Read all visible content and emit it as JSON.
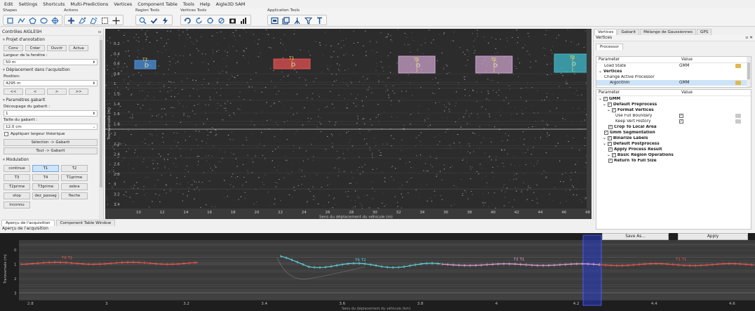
{
  "menu": [
    "Edit",
    "Settings",
    "Shortcuts",
    "Multi-Predictions",
    "Vertices",
    "Component Table",
    "Tools",
    "Help",
    "Aigle3D SAM"
  ],
  "toolbar": {
    "groups": [
      {
        "label": "Shapes",
        "icons": [
          "square-icon",
          "polyline-icon",
          "polygon-icon",
          "ellipse-icon",
          "circle-cross-icon"
        ]
      },
      {
        "label": "Actions",
        "icons": [
          "add-point-icon",
          "edit-shape-icon",
          "magic-shape-icon",
          "select-rect-icon",
          "crosshair-icon"
        ]
      },
      {
        "label": "Region Tools",
        "icons": [
          "zoom-icon",
          "check-icon",
          "bolt-icon"
        ]
      },
      {
        "label": "Vertices Tools",
        "icons": [
          "undo-icon",
          "redo-rotate-icon",
          "vertices-icon",
          "vertex-edit-icon",
          "camera-icon",
          "histogram-icon"
        ]
      },
      {
        "label": "Application Tools",
        "icons": [
          "app-screenshot-icon",
          "app-layers-icon",
          "app-road-icon",
          "app-filter-icon",
          "app-ruler-icon"
        ]
      }
    ]
  },
  "left": {
    "title": "Contrôles AIGLESH",
    "project_section": "Projet d'annotation",
    "project_buttons": [
      "Conv",
      "Créer",
      "Ouvrir",
      "Actua"
    ],
    "window_width_label": "Largeur de la fenêtre :",
    "window_width_value": "50 m",
    "displacement_section": "Déplacement dans l'acquisition",
    "position_label": "Position:",
    "position_value": "4295 m",
    "nav_buttons": [
      "<<",
      "<",
      ">",
      ">>"
    ],
    "gabarit_section": "Paramètres gabarit",
    "cut_label": "Découpage du gabarit :",
    "cut_value": "1",
    "size_label": "Taille du gabarit :",
    "size_value": "12.0 cm",
    "apply_width_label": "Appliquer largeur théorique",
    "selection_button": "Sélection -> Gabarit",
    "all_button": "Tout -> Gabarit",
    "modulation_section": "Modulation",
    "modulation_buttons": [
      "continue",
      "T1",
      "T2",
      "T3",
      "T4",
      "T1prime",
      "T2prime",
      "T3prime",
      "zebra",
      "stop",
      "dez_passag",
      "fleche",
      "inconnu"
    ],
    "modulation_selected": "T1"
  },
  "main": {
    "yaxis_label": "Transversale (m)",
    "yticks": [
      "0.2",
      "0.4",
      "0.6",
      "0.8",
      "1",
      "1.2",
      "1.4",
      "1.6",
      "1.8",
      "2",
      "2.2",
      "2.4",
      "2.6",
      "2.8",
      "3",
      "3.2",
      "3.4",
      "3.6"
    ],
    "xticks": [
      "10",
      "12",
      "14",
      "16",
      "18",
      "20",
      "22",
      "24",
      "26",
      "28",
      "30",
      "32",
      "34",
      "36",
      "38",
      "40",
      "42",
      "44",
      "46",
      "48"
    ],
    "xaxis_label": "Sens du déplacement du véhicule (m)",
    "annotations": [
      {
        "label": "T1",
        "color": "#4a8fd8"
      },
      {
        "label": "T1",
        "color": "#e05050"
      },
      {
        "label": "T2",
        "color": "#c8a0c8"
      },
      {
        "label": "T2",
        "color": "#c8a0c8"
      },
      {
        "label": "T2",
        "color": "#3fb9c9"
      }
    ]
  },
  "bottom": {
    "tabs": [
      "Aperçu de l'acquisition",
      "Component Table Window"
    ],
    "active_tab": "Aperçu de l'acquisition",
    "title": "Aperçu de l'acquisition",
    "yaxis_label": "Transversale (m)",
    "yticks": [
      "0",
      "1",
      "2",
      "3"
    ],
    "xticks": [
      "2.8",
      "3",
      "3.2",
      "3.4",
      "3.6",
      "3.8",
      "4",
      "4.2",
      "4.4",
      "4.6"
    ],
    "xaxis_label": "Sens du déplacement du véhicule (km)",
    "track_labels": [
      "T6 T1",
      "T6 T2",
      "T2 T1",
      "T1 T1"
    ]
  },
  "right": {
    "tabs": [
      "Vertices",
      "Gabarit",
      "Mélange de Gaussiennes",
      "GPS"
    ],
    "active_tab": "Vertices",
    "panel_title": "Vertices",
    "processor_tab": "Processor",
    "col_parameter": "Parameter",
    "col_value": "Value",
    "top_rows": [
      {
        "name": "Load State",
        "value": "GMM",
        "indent": 1
      },
      {
        "name": "Vertices",
        "value": "",
        "indent": 0,
        "bold": true
      },
      {
        "name": "Change Active Processor",
        "value": "",
        "indent": 1
      },
      {
        "name": "Algorithm",
        "value": "GMM",
        "indent": 2
      }
    ],
    "tree_rows": [
      {
        "name": "GMM",
        "indent": 0,
        "bold": true,
        "check": true
      },
      {
        "name": "Default Preprocess",
        "indent": 1,
        "bold": true,
        "check": true
      },
      {
        "name": "Format Vertices",
        "indent": 2,
        "bold": true,
        "check": true
      },
      {
        "name": "Use Full Boundary",
        "indent": 4,
        "value_check": true
      },
      {
        "name": "Keep Vert History",
        "indent": 4,
        "value_check": true
      },
      {
        "name": "Crop To Local Area",
        "indent": 2,
        "bold": true,
        "check": true
      },
      {
        "name": "Gmm Segmentation",
        "indent": 1,
        "bold": true,
        "check": true
      },
      {
        "name": "Binarize Labels",
        "indent": 1,
        "bold": true,
        "check": true
      },
      {
        "name": "Default Postprocess",
        "indent": 1,
        "bold": true,
        "check": true
      },
      {
        "name": "Apply Process Result",
        "indent": 2,
        "bold": true,
        "check": true
      },
      {
        "name": "Basic Region Operations",
        "indent": 2,
        "bold": true,
        "check": true
      },
      {
        "name": "Return To Full Size",
        "indent": 2,
        "bold": true,
        "check": true
      }
    ],
    "save_button": "Save As...",
    "apply_button": "Apply"
  }
}
